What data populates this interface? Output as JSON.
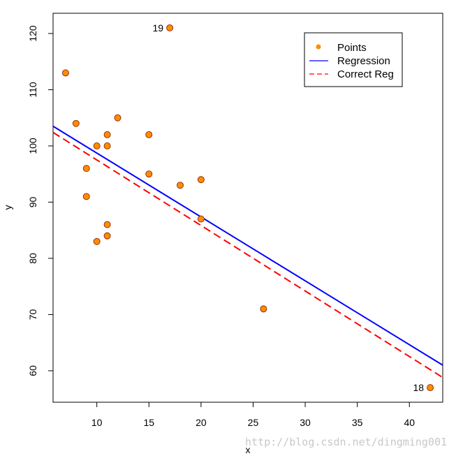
{
  "chart_data": {
    "type": "scatter",
    "title": "",
    "xlabel": "x",
    "ylabel": "y",
    "xlim": [
      5.8,
      43.2
    ],
    "ylim": [
      54.4,
      123.6
    ],
    "x_ticks": [
      10,
      15,
      20,
      25,
      30,
      35,
      40
    ],
    "y_ticks": [
      60,
      70,
      80,
      90,
      100,
      110,
      120
    ],
    "points": {
      "name": "Points",
      "color": "#FF8C00",
      "x": [
        7,
        8,
        9,
        9,
        10,
        10,
        11,
        11,
        11,
        11,
        12,
        15,
        15,
        17,
        18,
        20,
        20,
        26,
        42
      ],
      "y": [
        113,
        104,
        96,
        91,
        100,
        83,
        102,
        100,
        86,
        84,
        105,
        102,
        95,
        121,
        93,
        94,
        87,
        71,
        57
      ]
    },
    "lines": [
      {
        "name": "Regression",
        "color": "#0000FF",
        "style": "solid",
        "x": [
          5.8,
          43.2
        ],
        "y": [
          103.5,
          61.0
        ]
      },
      {
        "name": "Correct Reg",
        "color": "#FF0000",
        "style": "dashed",
        "x": [
          5.8,
          43.2
        ],
        "y": [
          102.4,
          58.8
        ]
      }
    ],
    "annotations": [
      {
        "text": "19",
        "x": 17,
        "y": 121
      },
      {
        "text": "18",
        "x": 42,
        "y": 57
      }
    ],
    "legend": {
      "position": "top-right",
      "entries": [
        "Points",
        "Regression",
        "Correct Reg"
      ]
    },
    "grid": false
  },
  "watermark": "http://blog.csdn.net/dingming001"
}
